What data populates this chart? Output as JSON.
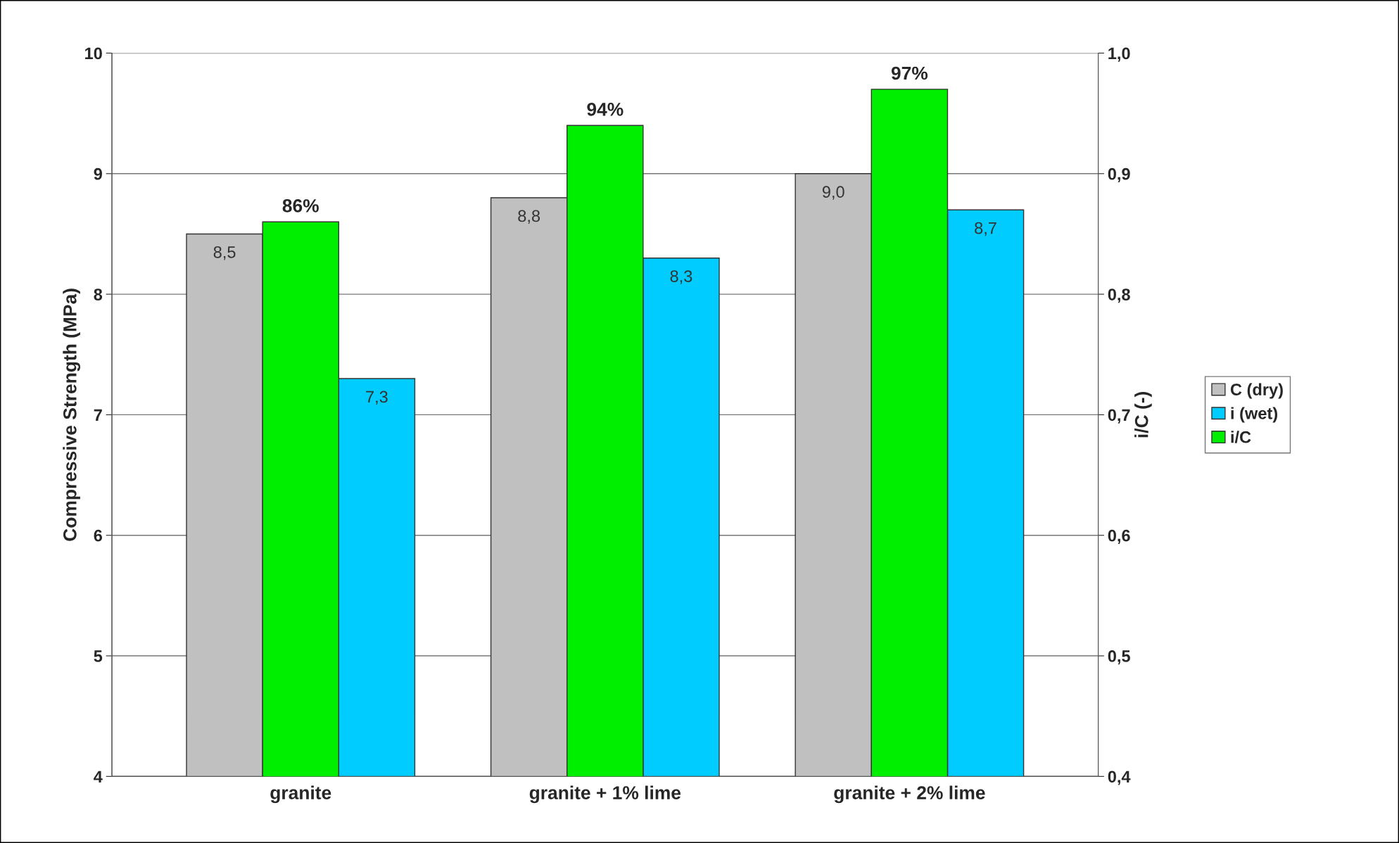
{
  "chart_data": {
    "type": "bar",
    "categories": [
      "granite",
      "granite + 1% lime",
      "granite + 2% lime"
    ],
    "ylabel": "Compressive Strength (MPa)",
    "y2label": "i/C (-)",
    "series": [
      {
        "name": "C (dry)",
        "color": "#c0c0c0",
        "values": [
          8.5,
          8.8,
          9.0
        ],
        "value_labels": [
          "8,5",
          "8,8",
          "9,0"
        ]
      },
      {
        "name": "i (wet)",
        "color": "#00ccff",
        "values": [
          7.3,
          8.3,
          8.7
        ],
        "value_labels": [
          "7,3",
          "8,3",
          "8,7"
        ]
      },
      {
        "name": "i/C",
        "color": "#00ee00",
        "axis": "y2",
        "values": [
          0.86,
          0.94,
          0.97
        ],
        "value_labels": [
          "86%",
          "94%",
          "97%"
        ]
      }
    ],
    "ylim": [
      4,
      10
    ],
    "yticks": [
      4,
      5,
      6,
      7,
      8,
      9,
      10
    ],
    "y2lim": [
      0.4,
      1.0
    ],
    "y2ticks": [
      {
        "value": 0.4,
        "label": "0,4"
      },
      {
        "value": 0.5,
        "label": "0,5"
      },
      {
        "value": 0.6,
        "label": "0,6"
      },
      {
        "value": 0.7,
        "label": "0,7"
      },
      {
        "value": 0.8,
        "label": "0,8"
      },
      {
        "value": 0.9,
        "label": "0,9"
      },
      {
        "value": 1.0,
        "label": "1,0"
      }
    ],
    "grid": "y",
    "legend": "right"
  }
}
